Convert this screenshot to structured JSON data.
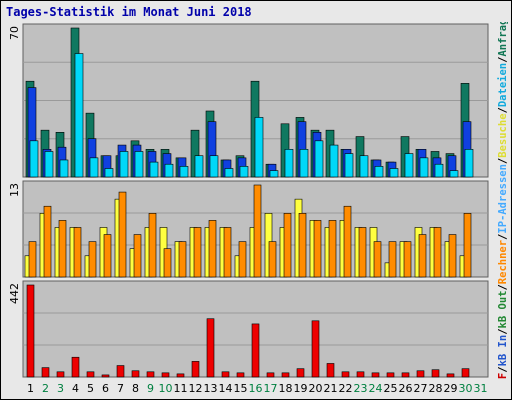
{
  "title": "Tages-Statistik im Monat Juni 2018",
  "legend": {
    "sep": "/",
    "items": [
      {
        "label": "kB F",
        "color": "#cc0000"
      },
      {
        "label": "kB In",
        "color": "#2255cc"
      },
      {
        "label": "kB Out",
        "color": "#228833"
      },
      {
        "label": "Rechner",
        "color": "#ff8800"
      },
      {
        "label": "IP-Adressen",
        "color": "#44aaff"
      },
      {
        "label": "Besuche",
        "color": "#dddd33"
      },
      {
        "label": "Dateien",
        "color": "#11aadd"
      },
      {
        "label": "Anfragen",
        "color": "#117755"
      }
    ]
  },
  "colors": {
    "anfragen": "#107860",
    "dateien": "#1040e0",
    "seiten": "#00d8f8",
    "besuche": "#ffff40",
    "rechner": "#ff8c00",
    "kbf": "#ee0000",
    "weekday_label": "#000000",
    "weekend_label": "#008040"
  },
  "chart_data": [
    {
      "type": "bar",
      "panel": "requests",
      "ymax_label": "70",
      "categories": [
        "1",
        "2",
        "3",
        "4",
        "5",
        "6",
        "7",
        "8",
        "9",
        "10",
        "11",
        "12",
        "13",
        "14",
        "15",
        "16",
        "17",
        "18",
        "19",
        "20",
        "21",
        "22",
        "23",
        "24",
        "25",
        "26",
        "27",
        "28",
        "29",
        "30",
        "31"
      ],
      "weekend_days": [
        "2",
        "3",
        "9",
        "10",
        "16",
        "17",
        "23",
        "24",
        "30",
        "31"
      ],
      "series": [
        {
          "name": "Anfragen",
          "values": [
            45,
            22,
            21,
            70,
            30,
            10,
            10,
            17,
            13,
            13,
            9,
            22,
            31,
            8,
            10,
            45,
            6,
            25,
            28,
            22,
            22,
            13,
            19,
            8,
            7,
            19,
            13,
            12,
            11,
            44,
            0
          ]
        },
        {
          "name": "Dateien",
          "values": [
            42,
            13,
            14,
            0,
            18,
            10,
            15,
            15,
            12,
            11,
            9,
            0,
            26,
            8,
            9,
            0,
            6,
            0,
            26,
            21,
            0,
            13,
            0,
            8,
            7,
            0,
            13,
            9,
            10,
            26,
            0
          ]
        },
        {
          "name": "Seiten",
          "values": [
            17,
            12,
            8,
            58,
            9,
            4,
            12,
            12,
            7,
            6,
            5,
            10,
            10,
            4,
            5,
            28,
            3,
            13,
            13,
            17,
            15,
            11,
            10,
            5,
            4,
            11,
            9,
            6,
            3,
            13,
            0
          ]
        }
      ]
    },
    {
      "type": "bar",
      "panel": "visits",
      "ymax_label": "13",
      "categories": [
        "1",
        "2",
        "3",
        "4",
        "5",
        "6",
        "7",
        "8",
        "9",
        "10",
        "11",
        "12",
        "13",
        "14",
        "15",
        "16",
        "17",
        "18",
        "19",
        "20",
        "21",
        "22",
        "23",
        "24",
        "25",
        "26",
        "27",
        "28",
        "29",
        "30",
        "31"
      ],
      "series": [
        {
          "name": "Besuche",
          "values": [
            3,
            9,
            7,
            7,
            3,
            7,
            11,
            4,
            7,
            7,
            5,
            7,
            7,
            7,
            3,
            7,
            9,
            7,
            11,
            8,
            7,
            8,
            7,
            7,
            2,
            5,
            7,
            7,
            5,
            3,
            0
          ]
        },
        {
          "name": "Rechner",
          "values": [
            5,
            10,
            8,
            7,
            5,
            6,
            12,
            6,
            9,
            4,
            5,
            7,
            8,
            7,
            5,
            13,
            5,
            9,
            9,
            8,
            8,
            10,
            7,
            5,
            5,
            5,
            6,
            7,
            6,
            9,
            0
          ]
        }
      ]
    },
    {
      "type": "bar",
      "panel": "kb",
      "ymax_label": "442",
      "categories": [
        "1",
        "2",
        "3",
        "4",
        "5",
        "6",
        "7",
        "8",
        "9",
        "10",
        "11",
        "12",
        "13",
        "14",
        "15",
        "16",
        "17",
        "18",
        "19",
        "20",
        "21",
        "22",
        "23",
        "24",
        "25",
        "26",
        "27",
        "28",
        "29",
        "30",
        "31"
      ],
      "series": [
        {
          "name": "kB F",
          "values": [
            442,
            45,
            25,
            95,
            25,
            10,
            55,
            30,
            25,
            20,
            15,
            75,
            280,
            25,
            20,
            255,
            20,
            20,
            40,
            270,
            65,
            25,
            25,
            20,
            20,
            20,
            30,
            35,
            15,
            40,
            0
          ]
        }
      ]
    }
  ]
}
